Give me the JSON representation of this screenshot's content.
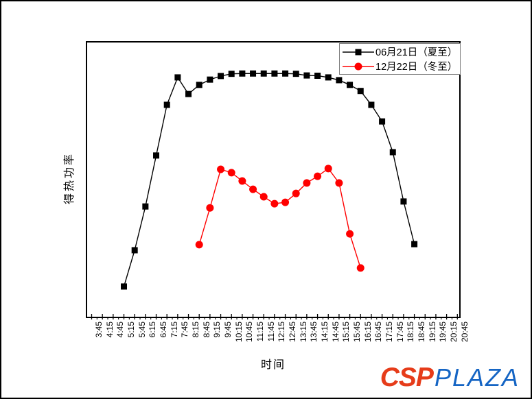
{
  "figure": {
    "background": "#ffffff",
    "frame_color": "#000000"
  },
  "logo": {
    "csp": "CSP",
    "plaza": "PLAZA",
    "csp_color": "#e63c1a",
    "plaza_color": "#1565c4"
  },
  "chart_data": {
    "type": "line",
    "title": "",
    "xlabel": "时间",
    "ylabel": "得热功率",
    "grid": false,
    "legend_position": "top-right inside plot",
    "y_axis_tick_labels": "none shown",
    "value_scale_note": "y values are relative units 0-100 estimated from plot height; no numeric y scale is shown in the image",
    "x_tick_labels": [
      "3:45",
      "4:15",
      "4:45",
      "5:15",
      "5:45",
      "6:15",
      "6:45",
      "7:15",
      "7:45",
      "8:15",
      "8:45",
      "9:15",
      "9:45",
      "10:15",
      "10:45",
      "11:15",
      "11:45",
      "12:15",
      "12:45",
      "13:15",
      "13:45",
      "14:15",
      "14:45",
      "15:15",
      "15:45",
      "16:15",
      "16:45",
      "17:15",
      "17:45",
      "18:15",
      "18:45",
      "19:15",
      "19:45",
      "20:15",
      "20:45"
    ],
    "series": [
      {
        "name": "06月21日（夏至）",
        "color": "#000000",
        "marker": "square",
        "x": [
          "5:15",
          "5:45",
          "6:15",
          "6:45",
          "7:15",
          "7:45",
          "8:15",
          "8:45",
          "9:15",
          "9:45",
          "10:15",
          "10:45",
          "11:15",
          "11:45",
          "12:15",
          "12:45",
          "13:15",
          "13:45",
          "14:15",
          "14:45",
          "15:15",
          "15:45",
          "16:15",
          "16:45",
          "17:15",
          "17:45",
          "18:15",
          "18:45"
        ],
        "values": [
          11.9,
          25.0,
          40.8,
          59.2,
          77.5,
          87.4,
          81.4,
          84.7,
          86.6,
          87.9,
          88.7,
          88.8,
          88.8,
          88.8,
          88.8,
          88.8,
          88.7,
          88.1,
          88.0,
          87.4,
          86.4,
          84.7,
          82.5,
          77.5,
          71.5,
          60.4,
          42.6,
          27.2
        ]
      },
      {
        "name": "12月22日（冬至）",
        "color": "#ff0000",
        "marker": "circle",
        "x": [
          "8:45",
          "9:15",
          "9:45",
          "10:15",
          "10:45",
          "11:15",
          "11:45",
          "12:15",
          "12:45",
          "13:15",
          "13:45",
          "14:15",
          "14:45",
          "15:15",
          "15:45",
          "16:15"
        ],
        "values": [
          27.0,
          40.3,
          54.2,
          53.0,
          50.0,
          47.0,
          44.3,
          41.8,
          42.3,
          45.5,
          49.3,
          51.7,
          54.5,
          49.3,
          30.9,
          18.6
        ]
      }
    ]
  }
}
